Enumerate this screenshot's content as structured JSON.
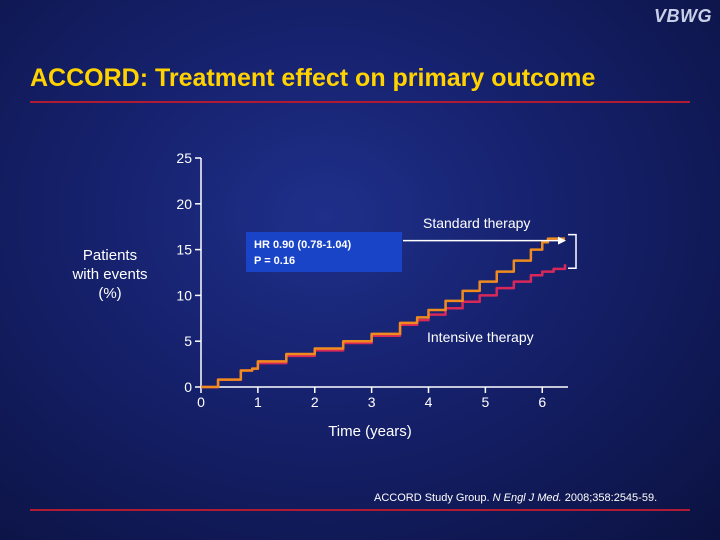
{
  "logo": "VBWG",
  "title": "ACCORD: Treatment effect on primary outcome",
  "annotation": {
    "hr": "HR 0.90 (0.78-1.04)",
    "p": "P = 0.16"
  },
  "citation": {
    "authors": "ACCORD Study Group.",
    "journal": "N Engl J Med.",
    "ref": "2008;358:2545-59."
  },
  "chart_data": {
    "type": "line",
    "xlabel": "Time (years)",
    "ylabel": "Patients\nwith events\n(%)",
    "xlim": [
      0,
      6.4
    ],
    "ylim": [
      0,
      25
    ],
    "xticks": [
      0,
      1,
      2,
      3,
      4,
      5,
      6
    ],
    "yticks": [
      0,
      5,
      10,
      15,
      20,
      25
    ],
    "grid": false,
    "series": [
      {
        "name": "Standard therapy",
        "color": "#f08c1e",
        "x": [
          0,
          0.3,
          0.7,
          0.9,
          1.0,
          1.5,
          2.0,
          2.5,
          3.0,
          3.5,
          3.8,
          4.0,
          4.3,
          4.6,
          4.9,
          5.2,
          5.5,
          5.8,
          6.0,
          6.1,
          6.4
        ],
        "y": [
          0,
          0.8,
          1.8,
          2.0,
          2.8,
          3.6,
          4.2,
          5.0,
          5.8,
          7.0,
          7.6,
          8.4,
          9.4,
          10.5,
          11.5,
          12.6,
          13.8,
          15.0,
          15.8,
          16.2,
          16.2
        ]
      },
      {
        "name": "Intensive therapy",
        "color": "#d8285a",
        "x": [
          0,
          0.3,
          0.7,
          0.9,
          1.0,
          1.5,
          2.0,
          2.5,
          3.0,
          3.5,
          3.8,
          4.0,
          4.3,
          4.6,
          4.9,
          5.2,
          5.5,
          5.8,
          6.0,
          6.2,
          6.4
        ],
        "y": [
          0,
          0.8,
          1.8,
          2.0,
          2.6,
          3.4,
          4.0,
          4.8,
          5.6,
          6.8,
          7.3,
          7.9,
          8.6,
          9.3,
          10.0,
          10.8,
          11.5,
          12.2,
          12.6,
          12.9,
          13.4
        ]
      }
    ]
  }
}
